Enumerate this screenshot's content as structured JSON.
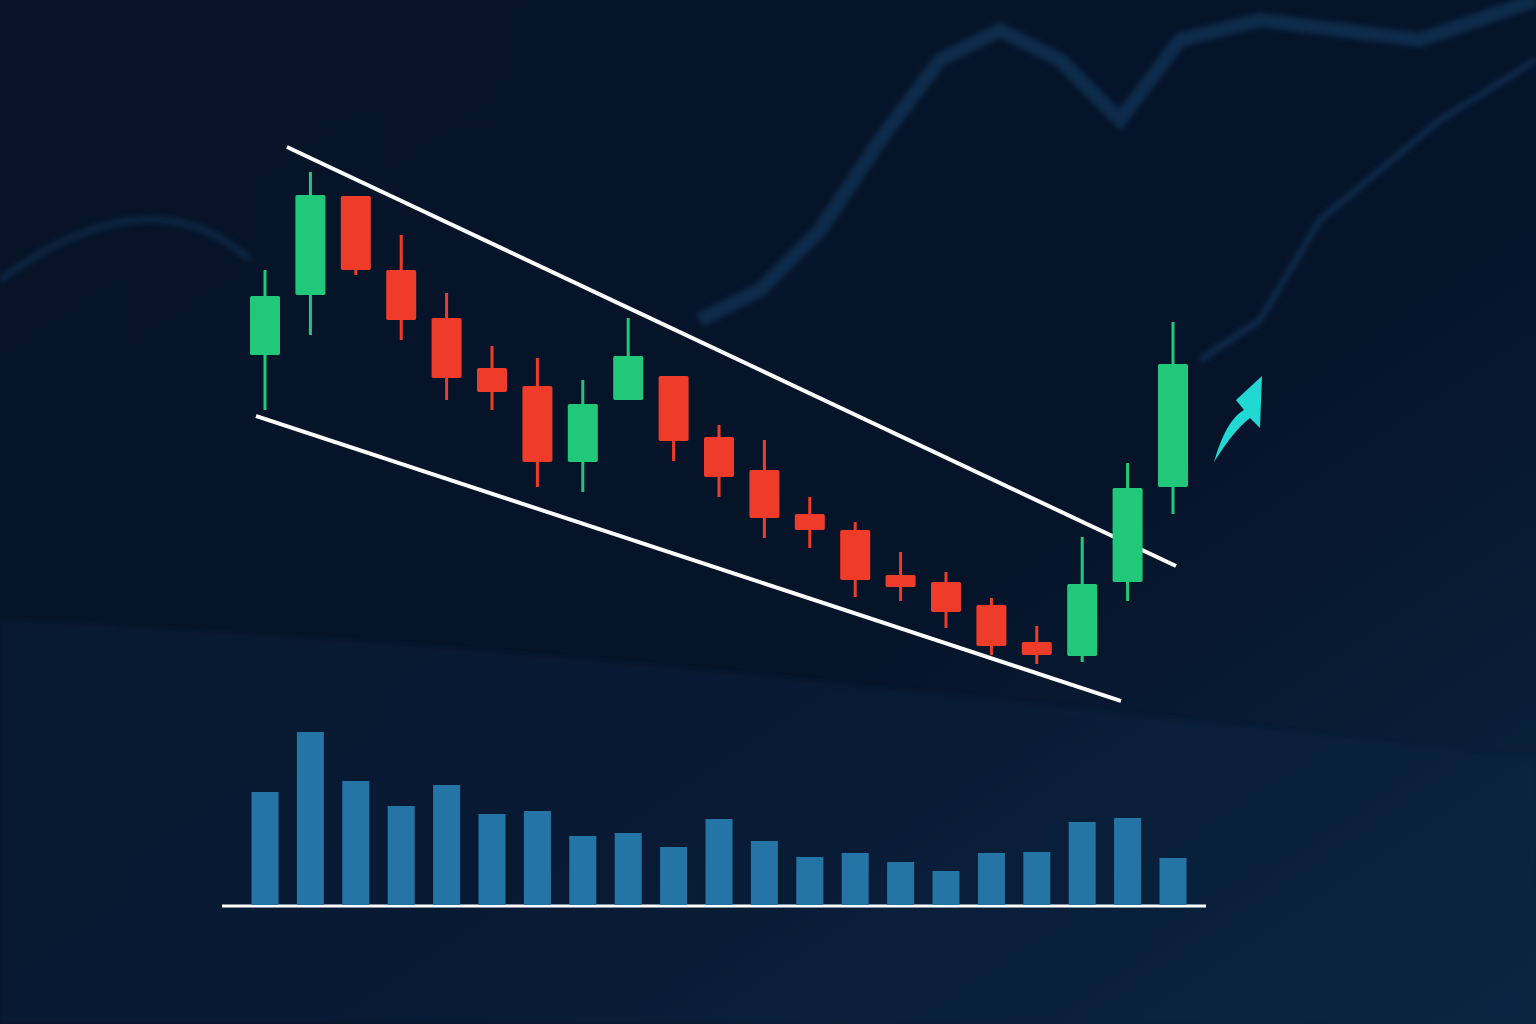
{
  "chart_data": [
    {
      "type": "candlestick",
      "open": [
        64.5,
        70.5,
        80.4,
        73,
        68.2,
        63.2,
        61.4,
        53.8,
        60,
        62.4,
        56.3,
        53,
        48.6,
        47,
        42.5,
        41.8,
        39.5,
        35.8,
        34.4,
        41.8,
        51.3
      ],
      "high": [
        73,
        82.8,
        80.4,
        76.5,
        70.7,
        65.4,
        64.2,
        62,
        68.2,
        62.4,
        57.5,
        56,
        50.3,
        47.8,
        44.8,
        42.8,
        40.2,
        37.4,
        46.3,
        53.7,
        67.8
      ],
      "low": [
        59,
        66.5,
        72.5,
        66,
        60,
        59,
        51.3,
        50.8,
        60,
        53.9,
        50.3,
        46.2,
        45.2,
        40.3,
        39.9,
        37.2,
        34.5,
        33.6,
        33.8,
        39.9,
        48.6
      ],
      "close": [
        70.4,
        80.5,
        73,
        68,
        62.2,
        60.8,
        53.8,
        59.6,
        64.4,
        55.9,
        52.3,
        48.2,
        47,
        42,
        41.3,
        38.8,
        35.4,
        34.5,
        41.6,
        51.2,
        63.6
      ],
      "up_color": "#22c87a",
      "down_color": "#ef3b2a",
      "ylim": [
        0,
        100
      ]
    },
    {
      "type": "bar",
      "values": [
        113,
        173,
        124,
        99,
        120,
        91,
        94,
        69,
        72,
        58,
        86,
        64,
        48,
        52,
        43,
        34,
        52,
        53,
        83,
        87,
        47
      ],
      "color": "#2474a6",
      "ylim": [
        0,
        200
      ]
    }
  ]
}
